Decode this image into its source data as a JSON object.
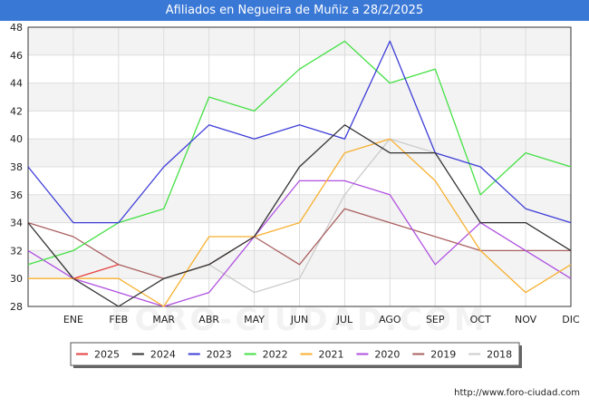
{
  "chart_data": {
    "type": "line",
    "title": "Afiliados en Negueira de Muñiz a 28/2/2025",
    "categories": [
      "",
      "ENE",
      "FEB",
      "MAR",
      "ABR",
      "MAY",
      "JUN",
      "JUL",
      "AGO",
      "SEP",
      "OCT",
      "NOV",
      "DIC"
    ],
    "ylim": [
      28,
      48
    ],
    "yticks": [
      28,
      30,
      32,
      34,
      36,
      38,
      40,
      42,
      44,
      46,
      48
    ],
    "xlabel": "",
    "ylabel": "",
    "grid": true,
    "legend_position": "bottom",
    "series": [
      {
        "name": "2025",
        "color": "#e84040",
        "values": [
          null,
          30,
          31,
          null,
          null,
          null,
          null,
          null,
          null,
          null,
          null,
          null,
          null
        ]
      },
      {
        "name": "2024",
        "color": "#333333",
        "values": [
          34,
          30,
          28,
          30,
          31,
          33,
          38,
          41,
          39,
          39,
          34,
          34,
          32
        ]
      },
      {
        "name": "2023",
        "color": "#3d3dd8",
        "values": [
          38,
          34,
          34,
          38,
          41,
          40,
          41,
          40,
          47,
          39,
          38,
          35,
          34
        ]
      },
      {
        "name": "2022",
        "color": "#44e044",
        "values": [
          31,
          32,
          34,
          35,
          43,
          42,
          45,
          47,
          44,
          45,
          36,
          39,
          38
        ]
      },
      {
        "name": "2021",
        "color": "#f8b030",
        "values": [
          30,
          30,
          30,
          28,
          33,
          33,
          34,
          39,
          40,
          37,
          32,
          29,
          31
        ]
      },
      {
        "name": "2020",
        "color": "#b050e0",
        "values": [
          32,
          30,
          29,
          28,
          29,
          33,
          37,
          37,
          36,
          31,
          34,
          32,
          30
        ]
      },
      {
        "name": "2019",
        "color": "#aa6060",
        "values": [
          34,
          33,
          31,
          30,
          31,
          33,
          31,
          35,
          34,
          33,
          32,
          32,
          32
        ]
      },
      {
        "name": "2018",
        "color": "#cccccc",
        "values": [
          null,
          null,
          null,
          null,
          31,
          29,
          30,
          36,
          40,
          39,
          null,
          null,
          null
        ]
      }
    ]
  },
  "footer": {
    "url": "http://www.foro-ciudad.com"
  },
  "watermark": "FORO-CIUDAD.COM"
}
